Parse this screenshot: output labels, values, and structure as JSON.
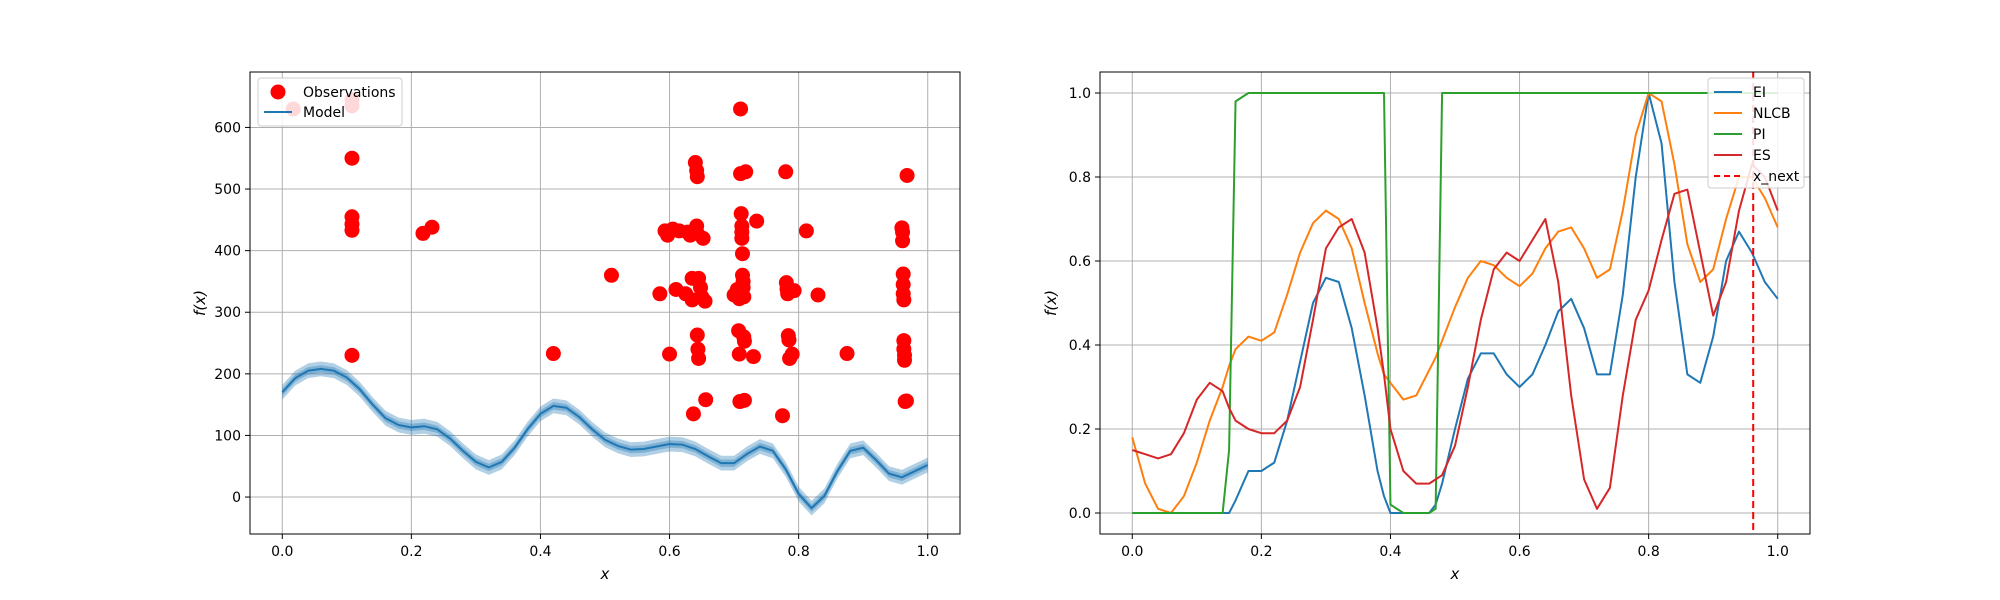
{
  "chart_data": [
    {
      "type": "scatter",
      "xlabel": "x",
      "ylabel": "f(x)",
      "xlim": [
        -0.05,
        1.05
      ],
      "ylim": [
        -60,
        690
      ],
      "grid": true,
      "legend_position": "top-left",
      "x_ticks": [
        "0.0",
        "0.2",
        "0.4",
        "0.6",
        "0.8",
        "1.0"
      ],
      "y_ticks": [
        "0",
        "100",
        "200",
        "300",
        "400",
        "500",
        "600"
      ],
      "x_tick_values": [
        0,
        0.2,
        0.4,
        0.6,
        0.8,
        1.0
      ],
      "y_tick_values": [
        0,
        100,
        200,
        300,
        400,
        500,
        600
      ],
      "series": [
        {
          "name": "Observations",
          "kind": "scatter",
          "color": "#ff0000",
          "points": [
            [
              0.017,
              630
            ],
            [
              0.108,
              645
            ],
            [
              0.108,
              635
            ],
            [
              0.108,
              550
            ],
            [
              0.108,
              455
            ],
            [
              0.108,
              443
            ],
            [
              0.108,
              433
            ],
            [
              0.108,
              230
            ],
            [
              0.218,
              428
            ],
            [
              0.232,
              438
            ],
            [
              0.42,
              233
            ],
            [
              0.51,
              360
            ],
            [
              0.585,
              330
            ],
            [
              0.593,
              432
            ],
            [
              0.597,
              425
            ],
            [
              0.6,
              232
            ],
            [
              0.605,
              435
            ],
            [
              0.61,
              337
            ],
            [
              0.615,
              432
            ],
            [
              0.625,
              330
            ],
            [
              0.628,
              430
            ],
            [
              0.632,
              425
            ],
            [
              0.635,
              355
            ],
            [
              0.635,
              320
            ],
            [
              0.637,
              135
            ],
            [
              0.64,
              543
            ],
            [
              0.642,
              530
            ],
            [
              0.643,
              520
            ],
            [
              0.642,
              440
            ],
            [
              0.643,
              428
            ],
            [
              0.643,
              263
            ],
            [
              0.644,
              240
            ],
            [
              0.645,
              225
            ],
            [
              0.645,
              355
            ],
            [
              0.648,
              340
            ],
            [
              0.65,
              325
            ],
            [
              0.652,
              420
            ],
            [
              0.655,
              318
            ],
            [
              0.656,
              158
            ],
            [
              0.7,
              328
            ],
            [
              0.705,
              337
            ],
            [
              0.707,
              270
            ],
            [
              0.708,
              232
            ],
            [
              0.708,
              322
            ],
            [
              0.709,
              155
            ],
            [
              0.71,
              630
            ],
            [
              0.71,
              525
            ],
            [
              0.711,
              460
            ],
            [
              0.712,
              440
            ],
            [
              0.712,
              430
            ],
            [
              0.712,
              420
            ],
            [
              0.713,
              395
            ],
            [
              0.713,
              360
            ],
            [
              0.714,
              350
            ],
            [
              0.714,
              340
            ],
            [
              0.715,
              325
            ],
            [
              0.715,
              260
            ],
            [
              0.716,
              253
            ],
            [
              0.716,
              157
            ],
            [
              0.718,
              528
            ],
            [
              0.735,
              448
            ],
            [
              0.73,
              228
            ],
            [
              0.775,
              132
            ],
            [
              0.78,
              528
            ],
            [
              0.781,
              348
            ],
            [
              0.782,
              338
            ],
            [
              0.783,
              330
            ],
            [
              0.784,
              262
            ],
            [
              0.785,
              255
            ],
            [
              0.786,
              225
            ],
            [
              0.79,
              232
            ],
            [
              0.793,
              335
            ],
            [
              0.812,
              432
            ],
            [
              0.83,
              328
            ],
            [
              0.875,
              233
            ],
            [
              0.96,
              437
            ],
            [
              0.961,
              430
            ],
            [
              0.961,
              416
            ],
            [
              0.962,
              362
            ],
            [
              0.962,
              345
            ],
            [
              0.962,
              330
            ],
            [
              0.963,
              320
            ],
            [
              0.963,
              254
            ],
            [
              0.963,
              240
            ],
            [
              0.964,
              230
            ],
            [
              0.964,
              222
            ],
            [
              0.965,
              155
            ],
            [
              0.967,
              156
            ],
            [
              0.968,
              522
            ]
          ]
        },
        {
          "name": "Model",
          "kind": "line",
          "color": "#1f77b4",
          "band_halfwidth": 12,
          "x": [
            0,
            0.02,
            0.04,
            0.06,
            0.08,
            0.1,
            0.12,
            0.14,
            0.16,
            0.18,
            0.2,
            0.22,
            0.24,
            0.26,
            0.28,
            0.3,
            0.32,
            0.34,
            0.36,
            0.38,
            0.4,
            0.42,
            0.44,
            0.46,
            0.48,
            0.5,
            0.52,
            0.54,
            0.56,
            0.58,
            0.6,
            0.62,
            0.64,
            0.66,
            0.68,
            0.7,
            0.72,
            0.74,
            0.76,
            0.78,
            0.8,
            0.82,
            0.84,
            0.86,
            0.88,
            0.9,
            0.92,
            0.94,
            0.96,
            0.98,
            1.0
          ],
          "values": [
            170,
            193,
            205,
            208,
            205,
            194,
            175,
            150,
            128,
            117,
            113,
            115,
            110,
            95,
            75,
            57,
            48,
            57,
            80,
            110,
            135,
            148,
            145,
            130,
            110,
            93,
            83,
            77,
            78,
            82,
            86,
            85,
            78,
            66,
            55,
            55,
            70,
            82,
            75,
            45,
            5,
            -18,
            2,
            42,
            75,
            80,
            60,
            38,
            32,
            42,
            52
          ]
        }
      ]
    },
    {
      "type": "line",
      "xlabel": "x",
      "ylabel": "f(x)",
      "xlim": [
        -0.05,
        1.05
      ],
      "ylim": [
        -0.05,
        1.05
      ],
      "grid": true,
      "legend_position": "top-right",
      "x_ticks": [
        "0.0",
        "0.2",
        "0.4",
        "0.6",
        "0.8",
        "1.0"
      ],
      "y_ticks": [
        "0.0",
        "0.2",
        "0.4",
        "0.6",
        "0.8",
        "1.0"
      ],
      "x_tick_values": [
        0,
        0.2,
        0.4,
        0.6,
        0.8,
        1.0
      ],
      "y_tick_values": [
        0,
        0.2,
        0.4,
        0.6,
        0.8,
        1.0
      ],
      "x": [
        0,
        0.02,
        0.04,
        0.06,
        0.08,
        0.1,
        0.12,
        0.14,
        0.15,
        0.16,
        0.18,
        0.2,
        0.22,
        0.24,
        0.26,
        0.28,
        0.3,
        0.32,
        0.34,
        0.36,
        0.38,
        0.39,
        0.4,
        0.42,
        0.44,
        0.46,
        0.47,
        0.48,
        0.5,
        0.52,
        0.54,
        0.56,
        0.58,
        0.6,
        0.62,
        0.64,
        0.66,
        0.68,
        0.7,
        0.72,
        0.74,
        0.76,
        0.78,
        0.8,
        0.82,
        0.84,
        0.86,
        0.88,
        0.9,
        0.92,
        0.94,
        0.96,
        0.98,
        1.0
      ],
      "series": [
        {
          "name": "EI",
          "color": "#1f77b4",
          "values": [
            0,
            0,
            0,
            0,
            0,
            0,
            0,
            0,
            0,
            0.03,
            0.1,
            0.1,
            0.12,
            0.22,
            0.36,
            0.5,
            0.56,
            0.55,
            0.44,
            0.28,
            0.1,
            0.04,
            0,
            0,
            0,
            0,
            0.02,
            0.07,
            0.2,
            0.32,
            0.38,
            0.38,
            0.33,
            0.3,
            0.33,
            0.4,
            0.48,
            0.51,
            0.44,
            0.33,
            0.33,
            0.52,
            0.8,
            1.0,
            0.88,
            0.55,
            0.33,
            0.31,
            0.42,
            0.6,
            0.67,
            0.62,
            0.55,
            0.51
          ]
        },
        {
          "name": "NLCB",
          "color": "#ff7f0e",
          "values": [
            0.18,
            0.07,
            0.01,
            0,
            0.04,
            0.12,
            0.22,
            0.3,
            0.35,
            0.39,
            0.42,
            0.41,
            0.43,
            0.52,
            0.62,
            0.69,
            0.72,
            0.7,
            0.63,
            0.5,
            0.38,
            0.33,
            0.31,
            0.27,
            0.28,
            0.34,
            0.37,
            0.41,
            0.49,
            0.56,
            0.6,
            0.59,
            0.56,
            0.54,
            0.57,
            0.63,
            0.67,
            0.68,
            0.63,
            0.56,
            0.58,
            0.72,
            0.9,
            1.0,
            0.98,
            0.83,
            0.64,
            0.55,
            0.58,
            0.7,
            0.8,
            0.8,
            0.75,
            0.68
          ]
        },
        {
          "name": "PI",
          "color": "#2ca02c",
          "values": [
            0,
            0,
            0,
            0,
            0,
            0,
            0,
            0,
            0.15,
            0.98,
            1.0,
            1.0,
            1.0,
            1.0,
            1.0,
            1.0,
            1.0,
            1.0,
            1.0,
            1.0,
            1.0,
            1.0,
            0.02,
            0,
            0,
            0,
            0.01,
            1.0,
            1.0,
            1.0,
            1.0,
            1.0,
            1.0,
            1.0,
            1.0,
            1.0,
            1.0,
            1.0,
            1.0,
            1.0,
            1.0,
            1.0,
            1.0,
            1.0,
            1.0,
            1.0,
            1.0,
            1.0,
            1.0,
            1.0,
            1.0,
            1.0,
            1.0,
            1.0
          ]
        },
        {
          "name": "ES",
          "color": "#d62728",
          "values": [
            0.15,
            0.14,
            0.13,
            0.14,
            0.19,
            0.27,
            0.31,
            0.29,
            0.25,
            0.22,
            0.2,
            0.19,
            0.19,
            0.22,
            0.3,
            0.46,
            0.63,
            0.68,
            0.7,
            0.62,
            0.44,
            0.33,
            0.2,
            0.1,
            0.07,
            0.07,
            0.08,
            0.09,
            0.16,
            0.3,
            0.46,
            0.58,
            0.62,
            0.6,
            0.65,
            0.7,
            0.55,
            0.28,
            0.08,
            0.01,
            0.06,
            0.28,
            0.46,
            0.53,
            0.65,
            0.76,
            0.77,
            0.62,
            0.47,
            0.55,
            0.72,
            0.83,
            0.8,
            0.72
          ]
        }
      ],
      "vline": {
        "name": "x_next",
        "x": 0.962,
        "color": "#ff0000",
        "style": "dashed"
      }
    }
  ]
}
